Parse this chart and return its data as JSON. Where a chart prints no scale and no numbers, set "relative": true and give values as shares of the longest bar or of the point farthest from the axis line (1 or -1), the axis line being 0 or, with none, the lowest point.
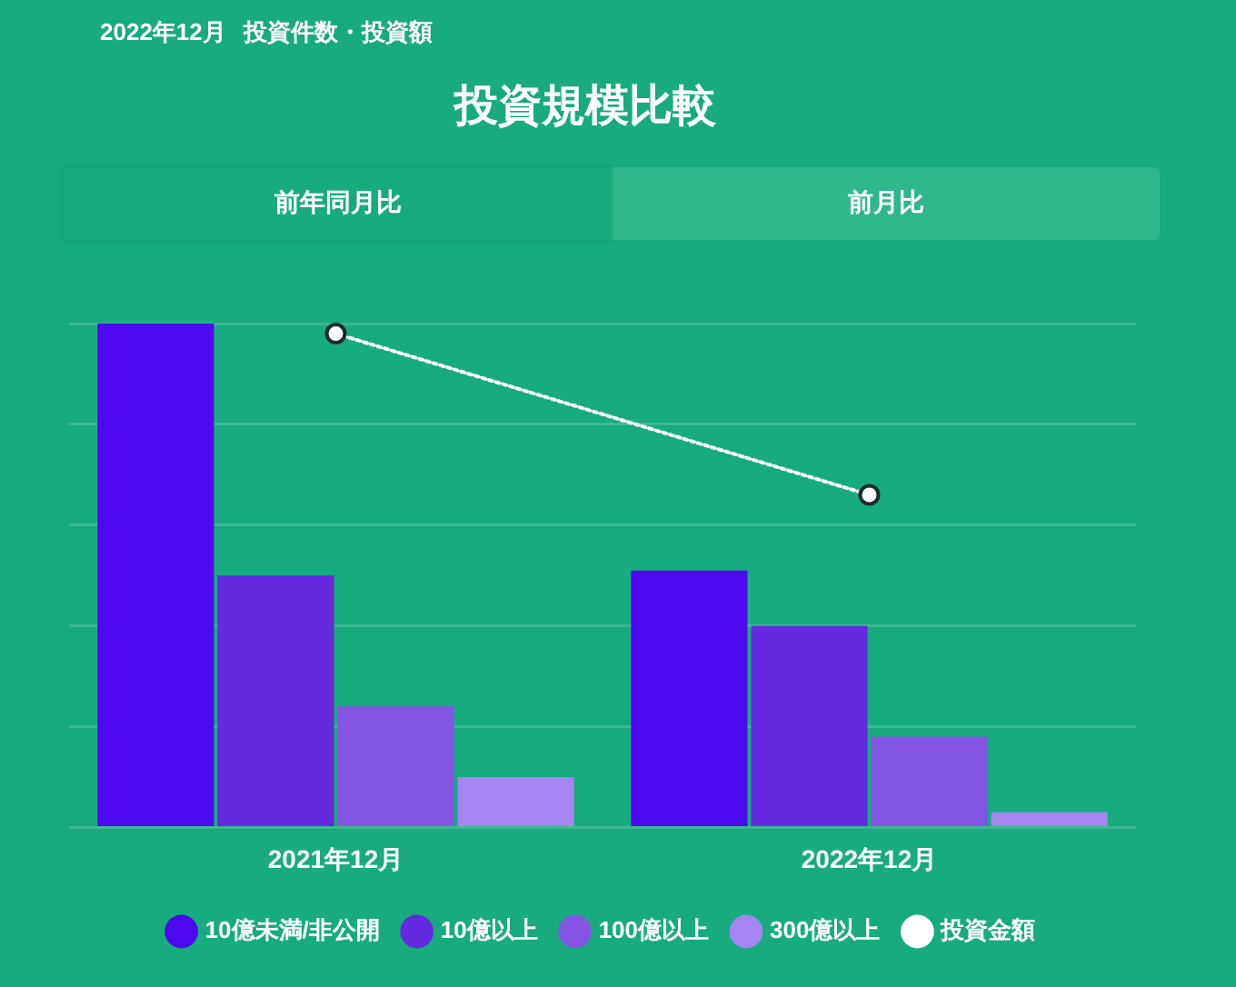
{
  "chart_data": {
    "type": "bar",
    "title": "投資規模比較",
    "subtitle": "2022年12月 投資件数・投資額",
    "annotations": [
      "前年同月比",
      "前月比"
    ],
    "categories": [
      "2021年12月",
      "2022年12月"
    ],
    "relative": true,
    "series": [
      {
        "name": "10億未満/非公開",
        "color": "#4c08ee",
        "values": [
          1,
          0.51
        ]
      },
      {
        "name": "10億以上",
        "color": "#632ae0",
        "values": [
          0.5,
          0.4
        ]
      },
      {
        "name": "100億以上",
        "color": "#8454e2",
        "values": [
          0.24,
          0.18
        ]
      },
      {
        "name": "300億以上",
        "color": "#a585f2",
        "values": [
          0.1,
          0.03
        ]
      },
      {
        "name": "投資金額",
        "type": "line",
        "color": "#ffffff",
        "values": [
          0.98,
          0.66
        ],
        "marker": "circle",
        "line_style": "dotted"
      }
    ],
    "grid": "y",
    "legend": "bottom"
  }
}
